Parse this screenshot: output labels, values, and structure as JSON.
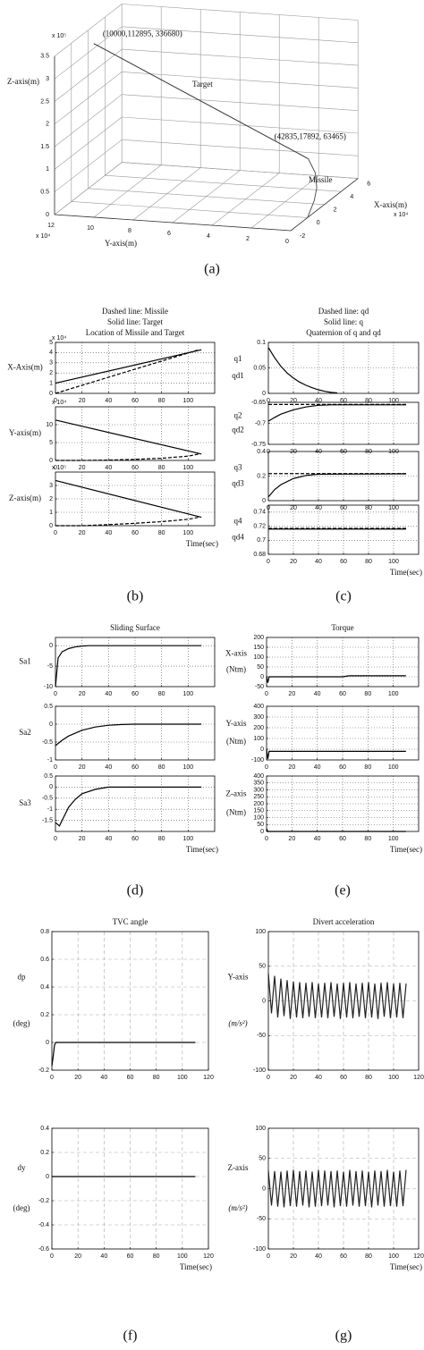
{
  "chart_data": [
    {
      "type": "line3d",
      "xlabel": "X-axis(m)",
      "ylabel": "Y-axis(m)",
      "zlabel": "Z-axis(m)",
      "xexponent": "x 10⁴",
      "yexponent": "x 10⁴",
      "zexponent": "x 10⁵",
      "xlim": [
        -2,
        6
      ],
      "xticks": [
        -2,
        0,
        2,
        4,
        6
      ],
      "ylim": [
        0,
        12
      ],
      "yticks": [
        0,
        2,
        4,
        6,
        8,
        10,
        12
      ],
      "zlim": [
        0,
        3.5
      ],
      "zticks": [
        0,
        0.5,
        1,
        1.5,
        2,
        2.5,
        3,
        3.5
      ],
      "annotations": [
        "(10000,112895, 336680)",
        "Target",
        "(42835,17892, 63465)",
        "Missile"
      ],
      "series": [
        {
          "x": [
            1,
            4.28
          ],
          "y": [
            11.29,
            1.79
          ],
          "values": [
            3.37,
            0.63
          ],
          "color": "#333"
        },
        {
          "x": [
            0,
            0.5,
            1.5,
            2.5,
            3.5,
            4.28
          ],
          "y": [
            0,
            0.1,
            0.3,
            0.6,
            1.1,
            1.79
          ],
          "values": [
            0,
            0.05,
            0.15,
            0.28,
            0.45,
            0.63
          ],
          "color": "#555"
        }
      ],
      "caption": "(a)"
    },
    {
      "type": "line",
      "title": [
        "Dashed line: Missile",
        "Solid line: Target",
        "Location of Missile and Target"
      ],
      "ylabel": [
        "X-Axis(m)"
      ],
      "exponent": "x 10⁴",
      "grid": "dotted",
      "xlim": [
        0,
        120
      ],
      "xticks": [
        0,
        20,
        40,
        60,
        80,
        100
      ],
      "ylim": [
        0,
        5
      ],
      "yticks": [
        0,
        1,
        2,
        3,
        4,
        5
      ],
      "series": [
        {
          "x": [
            0,
            110
          ],
          "values": [
            1,
            4.28
          ],
          "color": "#000",
          "style": "solid"
        },
        {
          "x": [
            0,
            108
          ],
          "values": [
            0,
            4.28
          ],
          "color": "#000",
          "style": "dashed"
        }
      ]
    },
    {
      "type": "line",
      "ylabel": [
        "Y-axis(m)"
      ],
      "exponent": "x 10⁴",
      "grid": "dotted",
      "xlim": [
        0,
        120
      ],
      "xticks": [
        0,
        20,
        40,
        60,
        80,
        100
      ],
      "ylim": [
        0,
        15
      ],
      "yticks": [
        0,
        5,
        10
      ],
      "series": [
        {
          "x": [
            0,
            110
          ],
          "values": [
            11.29,
            1.79
          ],
          "color": "#000",
          "style": "solid"
        },
        {
          "x": [
            0,
            20,
            40,
            60,
            80,
            100,
            108
          ],
          "values": [
            0,
            0,
            0.1,
            0.3,
            0.6,
            1.2,
            1.79
          ],
          "color": "#000",
          "style": "dashed"
        }
      ]
    },
    {
      "type": "line",
      "ylabel": [
        "Z-axis(m)"
      ],
      "exponent": "x 10⁵",
      "grid": "dotted",
      "xlabel": "Time(sec)",
      "caption": "(b)",
      "xlim": [
        0,
        120
      ],
      "xticks": [
        0,
        20,
        40,
        60,
        80,
        100
      ],
      "ylim": [
        0,
        4
      ],
      "yticks": [
        0,
        1,
        2,
        3
      ],
      "series": [
        {
          "x": [
            0,
            110
          ],
          "values": [
            3.37,
            0.63
          ],
          "color": "#000",
          "style": "solid"
        },
        {
          "x": [
            0,
            20,
            40,
            60,
            80,
            100,
            108
          ],
          "values": [
            0,
            0,
            0.08,
            0.18,
            0.3,
            0.48,
            0.63
          ],
          "color": "#000",
          "style": "dashed"
        }
      ]
    },
    {
      "type": "line",
      "title": [
        "Dashed line: qd",
        "Solid line: q",
        "Quaternion of q and qd"
      ],
      "ylabel": [
        "q1",
        "qd1"
      ],
      "grid": "dotted",
      "xlim": [
        0,
        120
      ],
      "xticks": [
        0,
        20,
        40,
        60,
        80,
        100
      ],
      "ylim": [
        0,
        0.1
      ],
      "yticks": [
        0,
        0.05,
        0.1
      ],
      "series": [
        {
          "x": [
            0,
            5,
            10,
            15,
            20,
            25,
            30,
            35,
            40,
            45,
            50,
            55
          ],
          "values": [
            0.09,
            0.07,
            0.053,
            0.04,
            0.03,
            0.022,
            0.016,
            0.011,
            0.007,
            0.004,
            0.002,
            0.001
          ],
          "color": "#000",
          "style": "solid"
        }
      ]
    },
    {
      "type": "line",
      "ylabel": [
        "q2",
        "qd2"
      ],
      "grid": "dotted",
      "xlim": [
        0,
        120
      ],
      "xticks": [
        0,
        20,
        40,
        60,
        80,
        100
      ],
      "ylim": [
        -0.75,
        -0.65
      ],
      "yticks": [
        -0.75,
        -0.7,
        -0.65
      ],
      "series": [
        {
          "x": [
            0,
            110
          ],
          "values": [
            -0.655,
            -0.655
          ],
          "color": "#000",
          "style": "dashed"
        },
        {
          "x": [
            0,
            5,
            10,
            20,
            30,
            40,
            50,
            110
          ],
          "values": [
            -0.695,
            -0.686,
            -0.678,
            -0.668,
            -0.661,
            -0.657,
            -0.656,
            -0.656
          ],
          "color": "#000",
          "style": "solid"
        }
      ]
    },
    {
      "type": "line",
      "ylabel": [
        "q3",
        "qd3"
      ],
      "grid": "dotted",
      "xlim": [
        0,
        120
      ],
      "xticks": [
        0,
        20,
        40,
        60,
        80,
        100
      ],
      "ylim": [
        0,
        0.4
      ],
      "yticks": [
        0,
        0.2,
        0.4
      ],
      "series": [
        {
          "x": [
            0,
            110
          ],
          "values": [
            0.22,
            0.22
          ],
          "color": "#000",
          "style": "dashed"
        },
        {
          "x": [
            0,
            5,
            10,
            20,
            30,
            40,
            110
          ],
          "values": [
            0.03,
            0.09,
            0.13,
            0.18,
            0.205,
            0.215,
            0.218
          ],
          "color": "#000",
          "style": "solid"
        }
      ]
    },
    {
      "type": "line",
      "ylabel": [
        "q4",
        "qd4"
      ],
      "grid": "dotted",
      "xlabel": "Time(sec)",
      "caption": "(c)",
      "xlim": [
        0,
        120
      ],
      "xticks": [
        0,
        20,
        40,
        60,
        80,
        100
      ],
      "ylim": [
        0.68,
        0.75
      ],
      "yticks": [
        0.68,
        0.7,
        0.72,
        0.74
      ],
      "series": [
        {
          "x": [
            0,
            110
          ],
          "values": [
            0.717,
            0.717
          ],
          "color": "#000",
          "style": "dashed"
        },
        {
          "x": [
            0,
            110
          ],
          "values": [
            0.716,
            0.716
          ],
          "color": "#000",
          "style": "solid"
        }
      ]
    },
    {
      "type": "line",
      "title": [
        "Sliding Surface"
      ],
      "ylabel": [
        "Sa1"
      ],
      "grid": "dotted",
      "xlim": [
        0,
        120
      ],
      "xticks": [
        0,
        20,
        40,
        60,
        80,
        100
      ],
      "ylim": [
        -10,
        2
      ],
      "yticks": [
        -10,
        -5,
        0
      ],
      "series": [
        {
          "x": [
            0,
            2,
            5,
            10,
            15,
            20,
            25,
            30,
            110
          ],
          "values": [
            -10,
            -3,
            -1.5,
            -0.7,
            -0.3,
            -0.1,
            0,
            0,
            0
          ],
          "color": "#000",
          "style": "solid"
        }
      ]
    },
    {
      "type": "line",
      "ylabel": [
        "Sa2"
      ],
      "grid": "dotted",
      "xlim": [
        0,
        120
      ],
      "xticks": [
        0,
        20,
        40,
        60,
        80,
        100
      ],
      "ylim": [
        -1,
        0.5
      ],
      "yticks": [
        -1,
        -0.5,
        0,
        0.5
      ],
      "series": [
        {
          "x": [
            0,
            5,
            10,
            20,
            30,
            40,
            50,
            60,
            110
          ],
          "values": [
            -0.6,
            -0.45,
            -0.33,
            -0.17,
            -0.08,
            -0.03,
            -0.01,
            0,
            0
          ],
          "color": "#000",
          "style": "solid"
        }
      ]
    },
    {
      "type": "line",
      "ylabel": [
        "Sa3"
      ],
      "grid": "dotted",
      "xlabel": "Time(sec)",
      "caption": "(d)",
      "xlim": [
        0,
        120
      ],
      "xticks": [
        0,
        20,
        40,
        60,
        80,
        100
      ],
      "ylim": [
        -2,
        0.5
      ],
      "yticks": [
        -1.5,
        -1,
        -0.5,
        0,
        0.5
      ],
      "series": [
        {
          "x": [
            0,
            3,
            5,
            10,
            15,
            20,
            30,
            40,
            50,
            110
          ],
          "values": [
            -1.6,
            -1.75,
            -1.5,
            -0.9,
            -0.55,
            -0.3,
            -0.1,
            0,
            0,
            0
          ],
          "color": "#000",
          "style": "solid"
        }
      ]
    },
    {
      "type": "line",
      "title": [
        "Torque"
      ],
      "ylabel": [
        "X-axis",
        "(Ntm)"
      ],
      "grid": "dotted",
      "xlim": [
        0,
        120
      ],
      "xticks": [
        0,
        20,
        40,
        60,
        80,
        100
      ],
      "ylim": [
        -50,
        200
      ],
      "yticks": [
        -50,
        0,
        50,
        100,
        150,
        200
      ],
      "series": [
        {
          "x": [
            0,
            1,
            2,
            3,
            60,
            65,
            110
          ],
          "values": [
            0,
            -30,
            0,
            0,
            0,
            5,
            5
          ],
          "color": "#000",
          "style": "solid"
        }
      ]
    },
    {
      "type": "line",
      "ylabel": [
        "Y-axis",
        "(Ntm)"
      ],
      "grid": "dotted",
      "xlim": [
        0,
        120
      ],
      "xticks": [
        0,
        20,
        40,
        60,
        80,
        100
      ],
      "ylim": [
        -100,
        400
      ],
      "yticks": [
        -100,
        0,
        100,
        200,
        300,
        400
      ],
      "series": [
        {
          "x": [
            0,
            1,
            2,
            3,
            110
          ],
          "values": [
            0,
            -90,
            -20,
            -20,
            -20
          ],
          "color": "#000",
          "style": "solid"
        }
      ]
    },
    {
      "type": "line",
      "ylabel": [
        "Z-axis",
        "(Ntm)"
      ],
      "grid": "dotted",
      "xlabel": "Time(sec)",
      "caption": "(e)",
      "xlim": [
        0,
        120
      ],
      "xticks": [
        0,
        20,
        40,
        60,
        80,
        100
      ],
      "ylim": [
        0,
        400
      ],
      "yticks": [
        0,
        50,
        100,
        150,
        200,
        250,
        300,
        350,
        400
      ],
      "series": [
        {
          "x": [
            0,
            1,
            2,
            110
          ],
          "values": [
            20,
            0,
            0,
            0
          ],
          "color": "#000",
          "style": "solid"
        }
      ]
    },
    {
      "type": "line",
      "title": [
        "TVC angle"
      ],
      "ylabel": [
        "dp",
        "(deg)"
      ],
      "grid": "dashed",
      "xlim": [
        0,
        120
      ],
      "xticks": [
        0,
        20,
        40,
        60,
        80,
        100,
        120
      ],
      "ylim": [
        -0.2,
        0.8
      ],
      "yticks": [
        -0.2,
        0,
        0.2,
        0.4,
        0.6,
        0.8
      ],
      "series": [
        {
          "x": [
            0,
            1,
            2,
            3,
            110
          ],
          "values": [
            -0.17,
            -0.1,
            -0.02,
            0,
            0
          ],
          "color": "#000",
          "style": "solid"
        }
      ]
    },
    {
      "type": "line",
      "ylabel": [
        "dy",
        "(deg)"
      ],
      "grid": "dashed",
      "xlabel": "Time(sec)",
      "caption": "(f)",
      "xlim": [
        0,
        120
      ],
      "xticks": [
        0,
        20,
        40,
        60,
        80,
        100,
        120
      ],
      "ylim": [
        -0.6,
        0.4
      ],
      "yticks": [
        -0.6,
        -0.4,
        -0.2,
        0,
        0.2,
        0.4
      ],
      "series": [
        {
          "x": [
            0,
            110
          ],
          "values": [
            0,
            0
          ],
          "color": "#000",
          "style": "solid"
        }
      ]
    },
    {
      "type": "line",
      "title": [
        "Divert acceleration"
      ],
      "ylabel": [
        "Y-axis",
        "(m/s²)"
      ],
      "grid": "dashed",
      "xlim": [
        0,
        120
      ],
      "xticks": [
        0,
        20,
        40,
        60,
        80,
        100,
        120
      ],
      "ylim": [
        -100,
        100
      ],
      "yticks": [
        -100,
        -50,
        0,
        50,
        100
      ],
      "series": [
        {
          "x": [
            0,
            2.5,
            5,
            7.5,
            10,
            12.5,
            15,
            17.5,
            20,
            22.5,
            25,
            27.5,
            30,
            32.5,
            35,
            37.5,
            40,
            42.5,
            45,
            47.5,
            50,
            52.5,
            55,
            57.5,
            60,
            62.5,
            65,
            67.5,
            70,
            72.5,
            75,
            77.5,
            80,
            82.5,
            85,
            87.5,
            90,
            92.5,
            95,
            97.5,
            100,
            102.5,
            105,
            107.5,
            110
          ],
          "values": [
            40,
            -18,
            36,
            -24,
            32,
            -22,
            30,
            -26,
            28,
            -24,
            27,
            -25,
            26,
            -23,
            27,
            -25,
            25,
            -24,
            26,
            -25,
            27,
            -23,
            25,
            -26,
            26,
            -24,
            27,
            -25,
            25,
            -23,
            26,
            -25,
            27,
            -24,
            25,
            -26,
            26,
            -23,
            27,
            -25,
            25,
            -24,
            26,
            -25,
            25
          ],
          "color": "#222",
          "style": "solid"
        }
      ]
    },
    {
      "type": "line",
      "ylabel": [
        "Z-axis",
        "(m/s²)"
      ],
      "grid": "dashed",
      "xlabel": "Time(sec)",
      "caption": "(g)",
      "xlim": [
        0,
        120
      ],
      "xticks": [
        0,
        20,
        40,
        60,
        80,
        100,
        120
      ],
      "ylim": [
        -100,
        100
      ],
      "yticks": [
        -100,
        -50,
        0,
        50,
        100
      ],
      "series": [
        {
          "x": [
            0,
            2.5,
            5,
            7.5,
            10,
            12.5,
            15,
            17.5,
            20,
            22.5,
            25,
            27.5,
            30,
            32.5,
            35,
            37.5,
            40,
            42.5,
            45,
            47.5,
            50,
            52.5,
            55,
            57.5,
            60,
            62.5,
            65,
            67.5,
            70,
            72.5,
            75,
            77.5,
            80,
            82.5,
            85,
            87.5,
            90,
            92.5,
            95,
            97.5,
            100,
            102.5,
            105,
            107.5,
            110
          ],
          "values": [
            30,
            -28,
            29,
            -30,
            28,
            -31,
            30,
            -29,
            31,
            -30,
            29,
            -28,
            30,
            -31,
            28,
            -30,
            31,
            -29,
            30,
            -28,
            29,
            -31,
            30,
            -29,
            28,
            -30,
            31,
            -28,
            29,
            -30,
            30,
            -29,
            28,
            -31,
            30,
            -28,
            29,
            -30,
            31,
            -29,
            28,
            -30,
            30,
            -29,
            31
          ],
          "color": "#222",
          "style": "solid"
        }
      ]
    }
  ]
}
